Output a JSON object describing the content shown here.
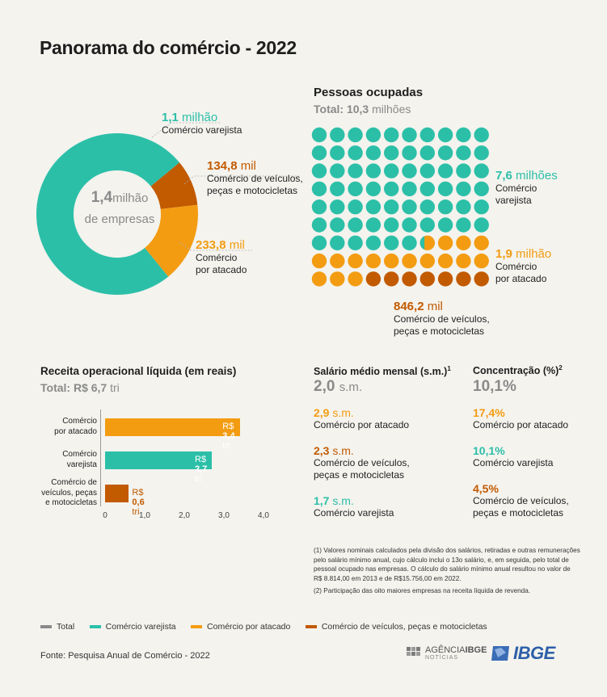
{
  "title": "Panorama do comércio - 2022",
  "colors": {
    "total": "#8a8a8a",
    "varejo": "#2cbfa8",
    "atacado": "#f39c12",
    "veiculos": "#c25a00"
  },
  "empresas": {
    "center_value": "1,4",
    "center_unit": "milhão",
    "center_text": "de empresas",
    "varejo": {
      "value": "1,1",
      "unit": "milhão",
      "label": "Comércio varejista"
    },
    "veiculos": {
      "value": "134,8",
      "unit": "mil",
      "label1": "Comércio de veículos,",
      "label2": "peças e motocicletas"
    },
    "atacado": {
      "value": "233,8",
      "unit": "mil",
      "label1": "Comércio",
      "label2": "por atacado"
    }
  },
  "pessoas": {
    "heading": "Pessoas ocupadas",
    "total_label": "Total:",
    "total_value": "10,3",
    "total_unit": "milhões",
    "varejo": {
      "value": "7,6",
      "unit": "milhões",
      "label1": "Comércio",
      "label2": "varejista"
    },
    "atacado": {
      "value": "1,9",
      "unit": "milhão",
      "label1": "Comércio",
      "label2": "por atacado"
    },
    "veiculos": {
      "value": "846,2",
      "unit": "mil",
      "label1": "Comércio de veículos,",
      "label2": "peças e motocicletas"
    }
  },
  "receita": {
    "heading": "Receita operacional líquida (em reais)",
    "total_label": "Total:",
    "total_value": "R$ 6,7",
    "total_unit": "tri",
    "bars": [
      {
        "cat1": "Comércio",
        "cat2": "por atacado",
        "cat3": "",
        "prefix": "R$",
        "value_text": "3,4",
        "unit": "tri"
      },
      {
        "cat1": "Comércio",
        "cat2": "varejista",
        "cat3": "",
        "prefix": "R$",
        "value_text": "2,7",
        "unit": "tri"
      },
      {
        "cat1": "Comércio de",
        "cat2": "veículos, peças",
        "cat3": "e motocicletas",
        "prefix": "R$",
        "value_text": "0,6",
        "unit": "tri"
      }
    ],
    "ticks": [
      "0",
      "1,0",
      "2,0",
      "3,0",
      "4,0"
    ]
  },
  "salario": {
    "heading": "Salário médio mensal (s.m.)",
    "sup": "1",
    "total_value": "2,0",
    "total_unit": "s.m.",
    "items": [
      {
        "value": "2,9",
        "unit": "s.m.",
        "label1": "Comércio por atacado",
        "label2": ""
      },
      {
        "value": "2,3",
        "unit": "s.m.",
        "label1": "Comércio de veículos,",
        "label2": "peças e motocicletas"
      },
      {
        "value": "1,7",
        "unit": "s.m.",
        "label1": "Comércio varejista",
        "label2": ""
      }
    ]
  },
  "concentracao": {
    "heading": "Concentração (%)",
    "sup": "2",
    "total_value": "10,1%",
    "items": [
      {
        "value": "17,4%",
        "label1": "Comércio por atacado",
        "label2": ""
      },
      {
        "value": "10,1%",
        "label1": "Comércio varejista",
        "label2": ""
      },
      {
        "value": "4,5%",
        "label1": "Comércio de veículos,",
        "label2": "peças e motocicletas"
      }
    ]
  },
  "footnotes": {
    "note1": "(1) Valores nominais calculados pela divisão dos salários, retiradas e outras remunerações pelo salário mínimo anual, cujo cálculo inclui o 13o salário, e, em seguida, pelo total de pessoal ocupado nas empresas. O cálculo do salário mínimo anual resultou no valor de R$ 8.814,00 em 2013 e de R$15.756,00 em 2022.",
    "note2": "(2) Participação das oito maiores empresas na receita líquida de revenda."
  },
  "legend": [
    "Total",
    "Comércio varejista",
    "Comércio por atacado",
    "Comércio de veículos, peças e motocicletas"
  ],
  "source": "Fonte: Pesquisa Anual de Comércio - 2022",
  "logos": {
    "agencia": "AGÊNCIA",
    "agencia_bold": "IBGE",
    "noticias": "NOTÍCIAS",
    "ibge": "IBGE"
  },
  "chart_data": [
    {
      "type": "pie",
      "categories": [
        "Comércio varejista",
        "Comércio de veículos, peças e motocicletas",
        "Comércio por atacado"
      ],
      "values": [
        1100,
        134.8,
        233.8
      ]
    },
    {
      "type": "waffle",
      "categories": [
        "Comércio varejista",
        "Comércio por atacado",
        "Comércio de veículos, peças e motocicletas"
      ],
      "values": [
        7.6,
        1.9,
        0.8462
      ]
    },
    {
      "type": "bar",
      "categories": [
        "Comércio por atacado",
        "Comércio varejista",
        "Comércio de veículos, peças e motocicletas"
      ],
      "values": [
        3.4,
        2.7,
        0.6
      ],
      "xlim": [
        0,
        4
      ]
    }
  ]
}
